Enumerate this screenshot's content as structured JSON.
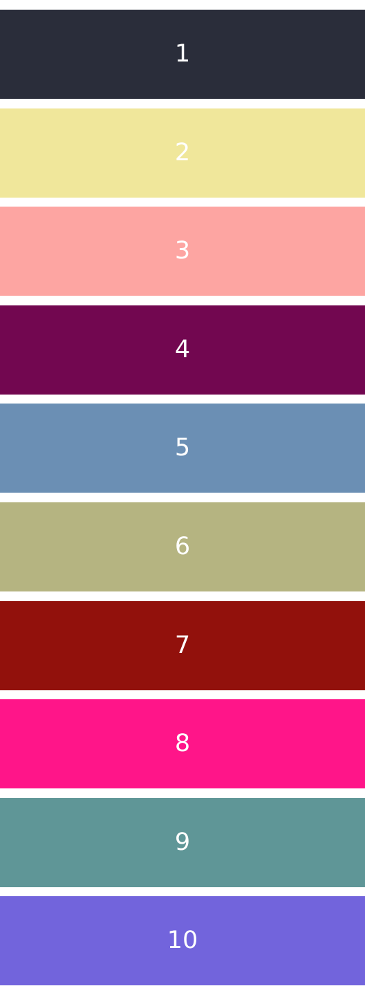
{
  "swatches": [
    {
      "label": "1",
      "color": "#2a2d3a"
    },
    {
      "label": "2",
      "color": "#f0e79b"
    },
    {
      "label": "3",
      "color": "#fda5a2"
    },
    {
      "label": "4",
      "color": "#720750"
    },
    {
      "label": "5",
      "color": "#6b8fb4"
    },
    {
      "label": "6",
      "color": "#b5b481"
    },
    {
      "label": "7",
      "color": "#92110c"
    },
    {
      "label": "8",
      "color": "#ff1589"
    },
    {
      "label": "9",
      "color": "#5f9697"
    },
    {
      "label": "10",
      "color": "#7264dc"
    }
  ]
}
